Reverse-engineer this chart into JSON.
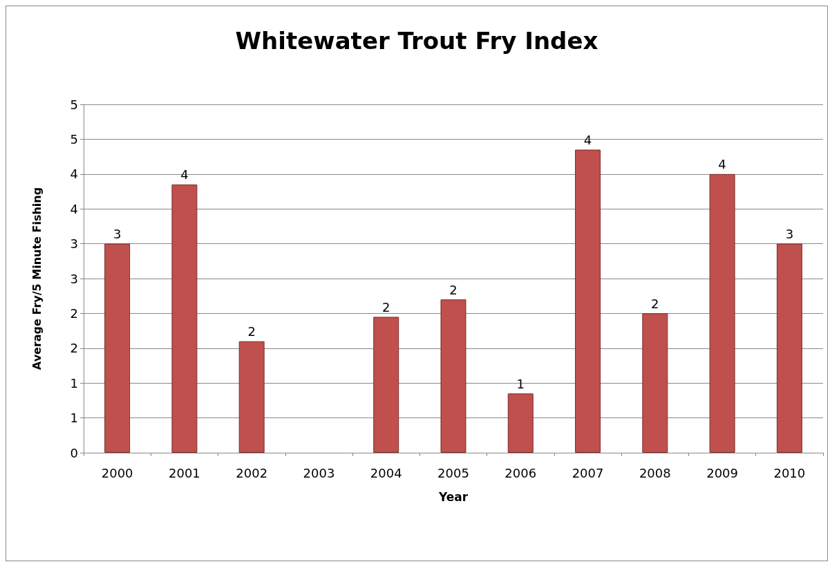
{
  "chart_data": {
    "type": "bar",
    "title": "Whitewater Trout Fry Index",
    "xlabel": "Year",
    "ylabel": "Average Fry/5 Minute Fishing",
    "categories": [
      "2000",
      "2001",
      "2002",
      "2003",
      "2004",
      "2005",
      "2006",
      "2007",
      "2008",
      "2009",
      "2010"
    ],
    "values": [
      3.0,
      3.85,
      1.6,
      null,
      1.95,
      2.2,
      0.85,
      4.35,
      2.0,
      4.0,
      3.0
    ],
    "value_labels": [
      "3",
      "4",
      "2",
      null,
      "2",
      "2",
      "1",
      "4",
      "2",
      "4",
      "3"
    ],
    "color": "#c0504d",
    "ylim": [
      0,
      5
    ],
    "yticks": [
      0,
      {
        "value": 0.5,
        "label": "1"
      },
      1,
      {
        "value": 1.5,
        "label": "2"
      },
      2,
      {
        "value": 2.5,
        "label": "3"
      },
      3,
      {
        "value": 3.5,
        "label": "4"
      },
      4,
      {
        "value": 4.5,
        "label": "5"
      },
      5
    ],
    "grid": "y"
  }
}
